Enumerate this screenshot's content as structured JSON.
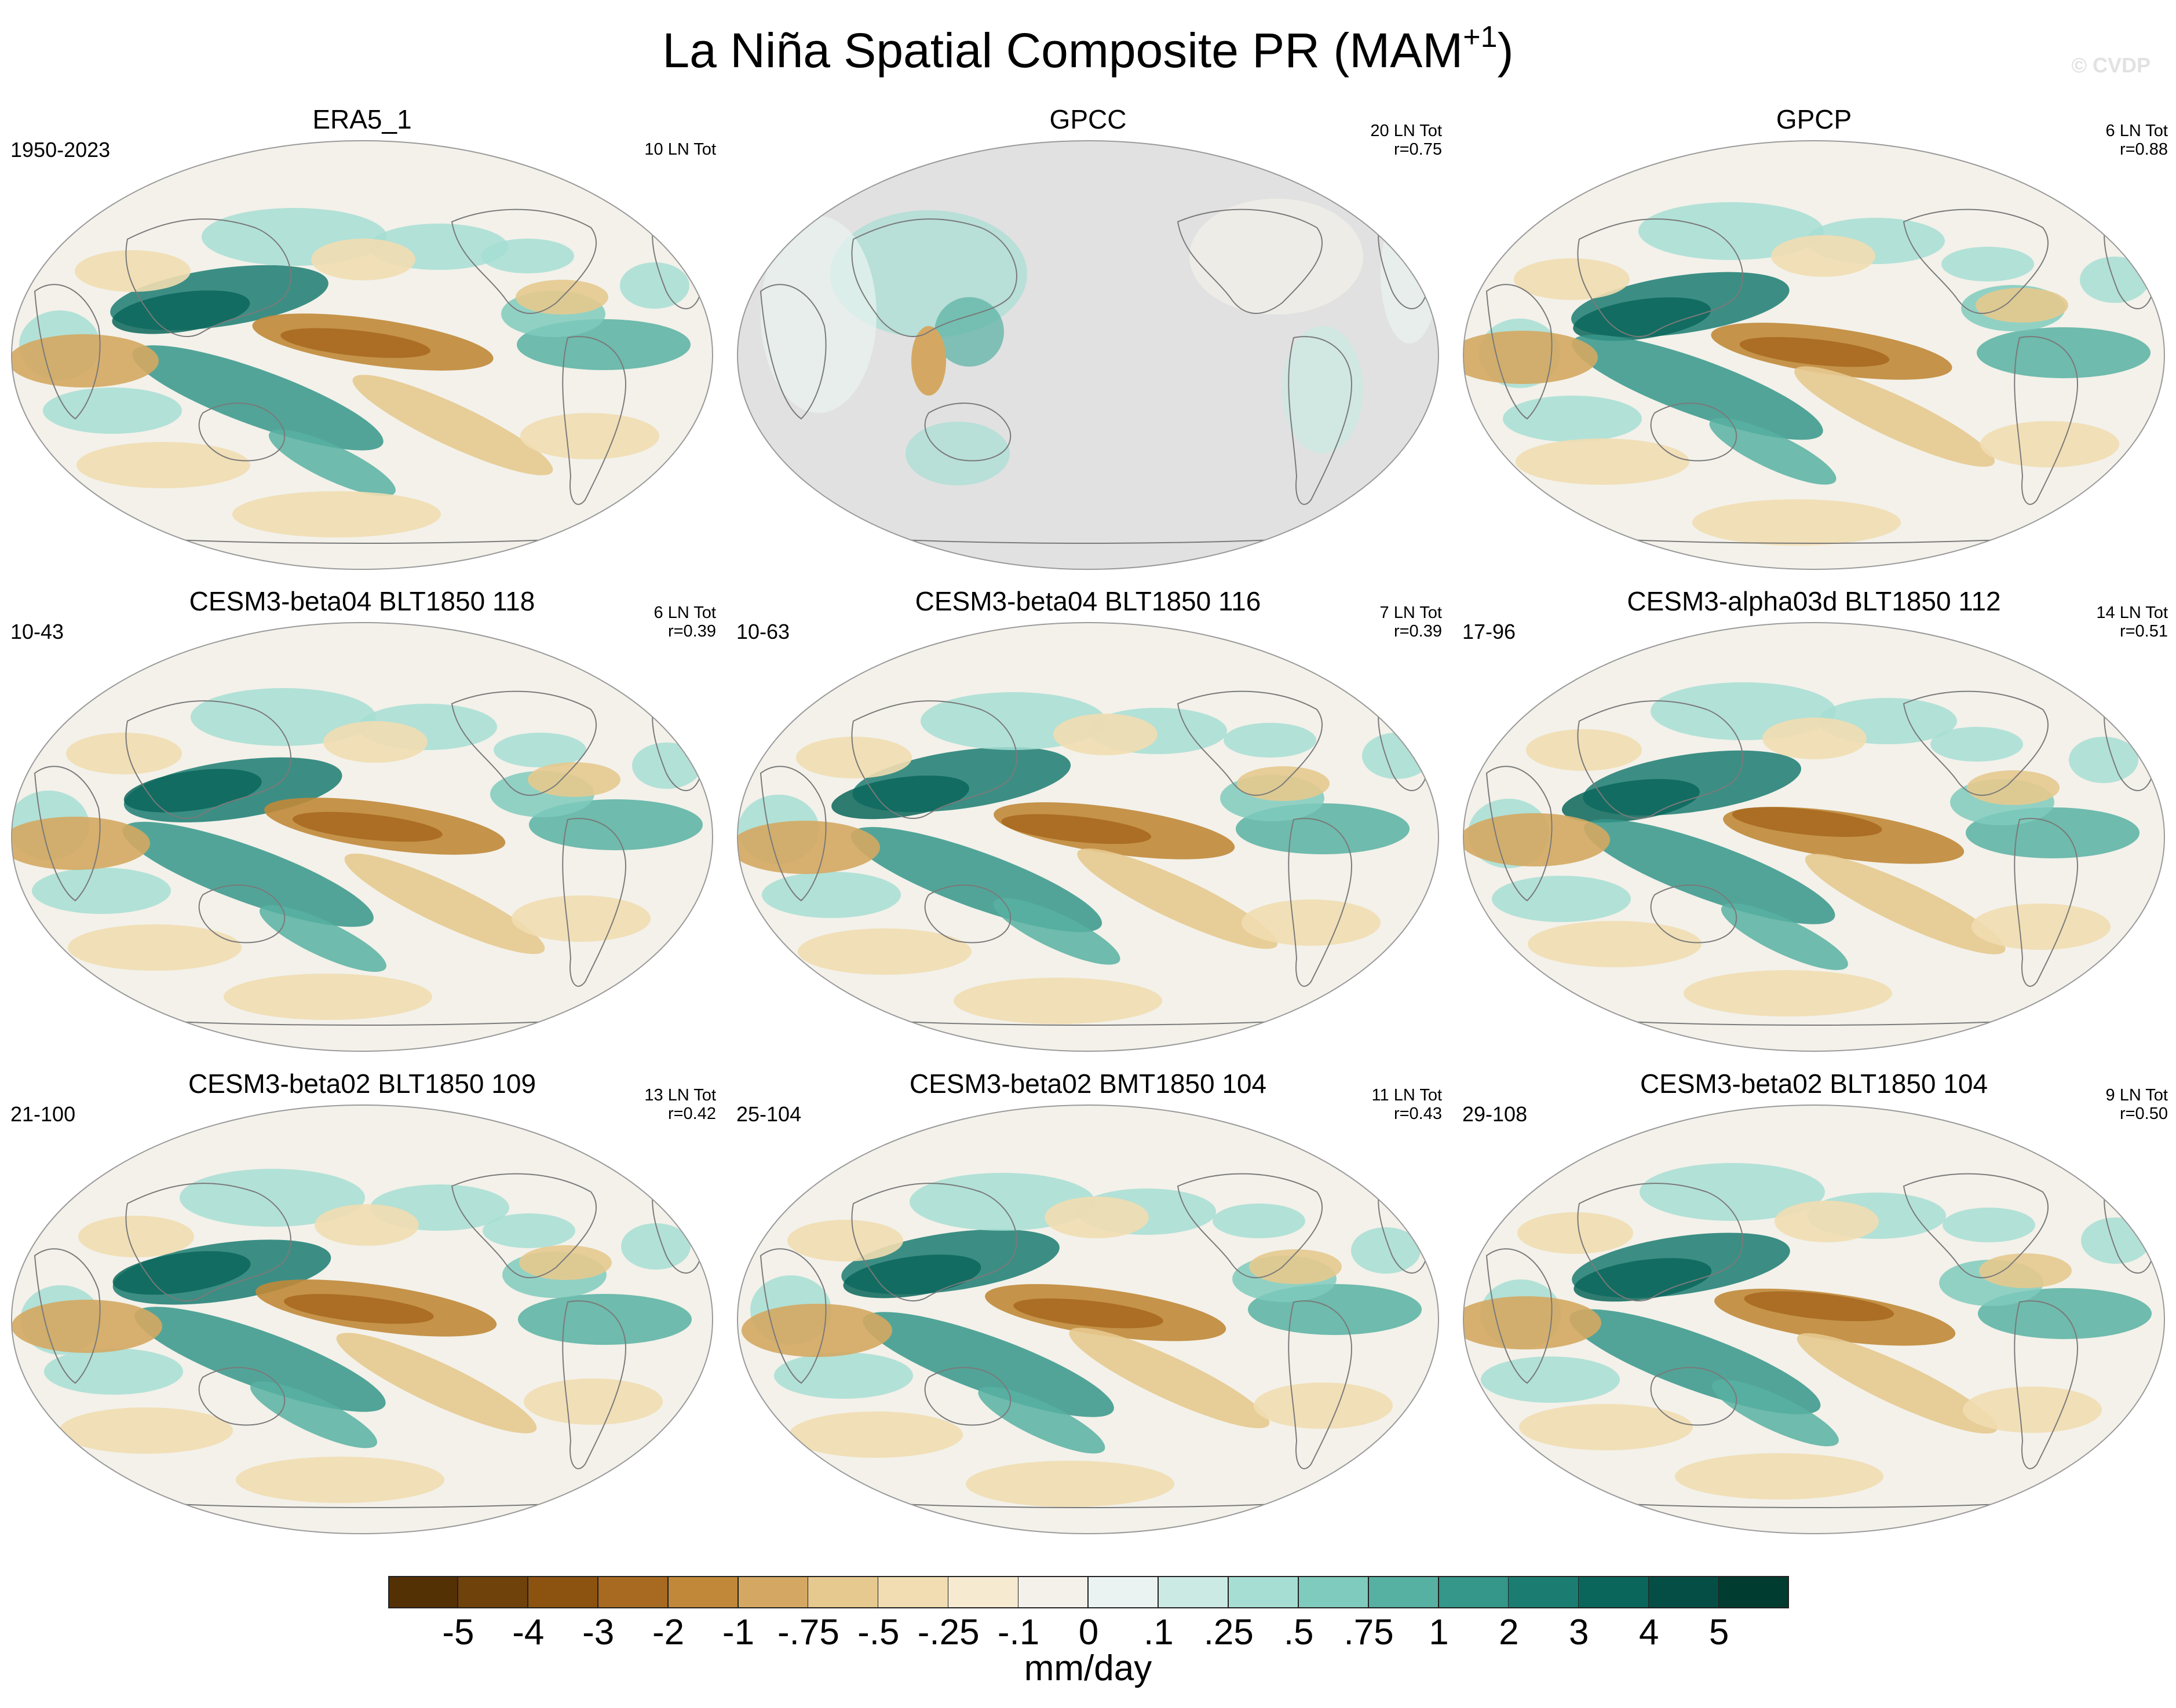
{
  "figure": {
    "title_main": "La Niña Spatial Composite PR (MAM",
    "title_sup": "+1",
    "title_end": ")",
    "watermark": "© CVDP"
  },
  "panels": [
    {
      "title": "ERA5_1",
      "period": "1950-2023",
      "count": "10 LN Tot",
      "corr": "",
      "land_only": false
    },
    {
      "title": "GPCC",
      "period": "",
      "count": "20 LN Tot",
      "corr": "r=0.75",
      "land_only": true
    },
    {
      "title": "GPCP",
      "period": "",
      "count": "6 LN Tot",
      "corr": "r=0.88",
      "land_only": false
    },
    {
      "title": "CESM3-beta04 BLT1850 118",
      "period": "10-43",
      "count": "6 LN Tot",
      "corr": "r=0.39",
      "land_only": false
    },
    {
      "title": "CESM3-beta04 BLT1850 116",
      "period": "10-63",
      "count": "7 LN Tot",
      "corr": "r=0.39",
      "land_only": false
    },
    {
      "title": "CESM3-alpha03d BLT1850 112",
      "period": "17-96",
      "count": "14 LN Tot",
      "corr": "r=0.51",
      "land_only": false
    },
    {
      "title": "CESM3-beta02 BLT1850 109",
      "period": "21-100",
      "count": "13 LN Tot",
      "corr": "r=0.42",
      "land_only": false
    },
    {
      "title": "CESM3-beta02 BMT1850 104",
      "period": "25-104",
      "count": "11 LN Tot",
      "corr": "r=0.43",
      "land_only": false
    },
    {
      "title": "CESM3-beta02 BLT1850 104",
      "period": "29-108",
      "count": "9 LN Tot",
      "corr": "r=0.50",
      "land_only": false
    }
  ],
  "colorbar": {
    "units": "mm/day",
    "ticks": [
      "-5",
      "-4",
      "-3",
      "-2",
      "-1",
      "-.75",
      "-.5",
      "-.25",
      "-.1",
      "0",
      ".1",
      ".25",
      ".5",
      ".75",
      "1",
      "2",
      "3",
      "4",
      "5"
    ],
    "colors": [
      "#543005",
      "#6f420c",
      "#8c5310",
      "#a76a20",
      "#c08838",
      "#d4a862",
      "#e6c98e",
      "#f1ddb1",
      "#f6ead0",
      "#f4f1ea",
      "#eaf3f1",
      "#cbeae3",
      "#a6ded4",
      "#7fcbbd",
      "#57b1a2",
      "#35968a",
      "#1b7d72",
      "#0a665b",
      "#044e45",
      "#003c30"
    ]
  },
  "map_colors": {
    "ocean_bg": "#f3f1ea",
    "no_data": "#e1e1e1",
    "coast": "#7a7a7a"
  }
}
